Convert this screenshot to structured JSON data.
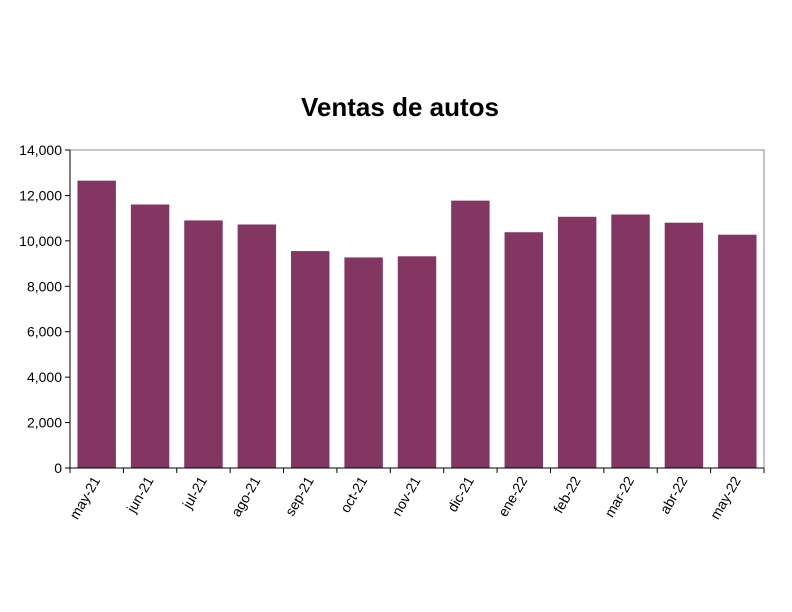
{
  "chart_data": {
    "type": "bar",
    "title": "Ventas de autos",
    "xlabel": "",
    "ylabel": "",
    "categories": [
      "may-21",
      "jun-21",
      "jul-21",
      "ago-21",
      "sep-21",
      "oct-21",
      "nov-21",
      "dic-21",
      "ene-22",
      "feb-22",
      "mar-22",
      "abr-22",
      "may-22"
    ],
    "values": [
      12650,
      11600,
      10900,
      10720,
      9550,
      9270,
      9320,
      11770,
      10380,
      11060,
      11160,
      10800,
      10270
    ],
    "ylim": [
      0,
      14000
    ],
    "yticks": [
      0,
      2000,
      4000,
      6000,
      8000,
      10000,
      12000,
      14000
    ],
    "ytick_labels": [
      "0",
      "2,000",
      "4,000",
      "6,000",
      "8,000",
      "10,000",
      "12,000",
      "14,000"
    ],
    "bar_color": "#843663",
    "grid": false,
    "legend": "none"
  }
}
